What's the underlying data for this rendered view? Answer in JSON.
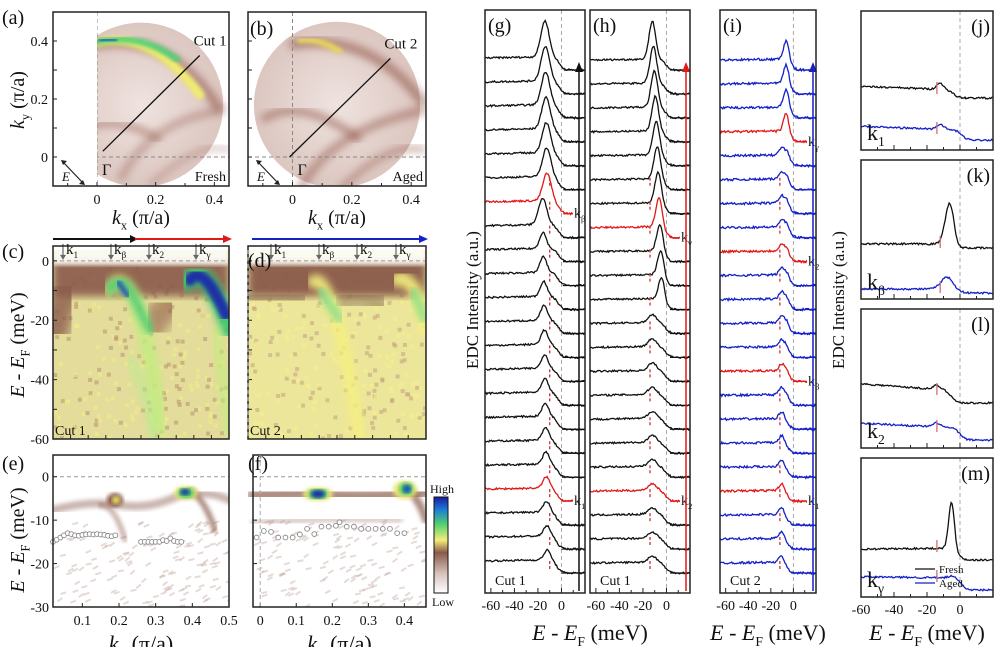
{
  "figure": {
    "panel_labels": {
      "a": "(a)",
      "b": "(b)",
      "c": "(c)",
      "d": "(d)",
      "e": "(e)",
      "f": "(f)",
      "g": "(g)",
      "h": "(h)",
      "i": "(i)",
      "j": "(j)",
      "k": "(k)",
      "l": "(l)",
      "m": "(m)"
    },
    "colors": {
      "fresh": "#111111",
      "aged": "#1420c8",
      "highlight": "#e01818",
      "marker": "#d04040",
      "axis": "#111111"
    }
  },
  "chart_data": [
    {
      "id": "a",
      "type": "heatmap",
      "title": "(a)",
      "xlabel": "k_x (π/a)",
      "ylabel": "k_y (π/a)",
      "xticks": [
        "0",
        "0.2",
        "0.4"
      ],
      "yticks": [
        "0",
        "0.2",
        "0.4"
      ],
      "xlim": [
        -0.15,
        0.45
      ],
      "ylim": [
        -0.1,
        0.5
      ],
      "annotations": [
        "Cut 1",
        "Γ",
        "E",
        "Fresh"
      ],
      "cut": {
        "from": [
          0.02,
          0.02
        ],
        "to": [
          0.35,
          0.35
        ],
        "label": "Cut 1"
      }
    },
    {
      "id": "b",
      "type": "heatmap",
      "title": "(b)",
      "xlabel": "k_x (π/a)",
      "xticks": [
        "0",
        "0.2",
        "0.4"
      ],
      "xlim": [
        -0.15,
        0.45
      ],
      "ylim": [
        -0.1,
        0.5
      ],
      "annotations": [
        "Cut 2",
        "Γ",
        "E",
        "Aged"
      ],
      "cut": {
        "from": [
          -0.01,
          0.0
        ],
        "to": [
          0.33,
          0.34
        ],
        "label": "Cut 2"
      }
    },
    {
      "id": "c",
      "type": "heatmap",
      "title": "(c)",
      "ylabel": "E - E_F (meV)",
      "yticks": [
        "0",
        "-20",
        "-40",
        "-60"
      ],
      "ylim": [
        -60,
        5
      ],
      "annotations": [
        "Cut 1"
      ],
      "markers": [
        "k₁",
        "k_β",
        "k₂",
        "k_γ"
      ]
    },
    {
      "id": "d",
      "type": "heatmap",
      "title": "(d)",
      "ylim": [
        -60,
        5
      ],
      "annotations": [
        "Cut 2"
      ],
      "markers": [
        "k₁",
        "k_β",
        "k₂",
        "k_γ"
      ]
    },
    {
      "id": "e",
      "type": "heatmap",
      "title": "(e)",
      "xlabel": "k_// (π/a)",
      "ylabel": "E - E_F (meV)",
      "xticks": [
        "0.1",
        "0.2",
        "0.3",
        "0.4",
        "0.5"
      ],
      "yticks": [
        "0",
        "-10",
        "-20",
        "-30"
      ],
      "xlim": [
        0.02,
        0.5
      ],
      "ylim": [
        -30,
        5
      ],
      "points": {
        "x": [
          0.02,
          0.03,
          0.04,
          0.05,
          0.06,
          0.07,
          0.08,
          0.09,
          0.1,
          0.11,
          0.12,
          0.13,
          0.14,
          0.15,
          0.16,
          0.17,
          0.18,
          0.19,
          0.26,
          0.27,
          0.28,
          0.29,
          0.3,
          0.31,
          0.32,
          0.33,
          0.34,
          0.35,
          0.36,
          0.37
        ],
        "y": [
          -15,
          -14.5,
          -14,
          -13.5,
          -13,
          -13.2,
          -13.5,
          -13.6,
          -13.4,
          -13.3,
          -13.2,
          -13.3,
          -13.2,
          -13.3,
          -13.4,
          -13.6,
          -13.7,
          -13.5,
          -15,
          -15,
          -15,
          -15,
          -15,
          -15,
          -14.6,
          -14.8,
          -14.2,
          -14.8,
          -15,
          -15
        ]
      }
    },
    {
      "id": "f",
      "type": "heatmap",
      "title": "(f)",
      "xlabel": "k_// (π/a)",
      "xticks": [
        "0",
        "0.1",
        "0.2",
        "0.3",
        "0.4"
      ],
      "xlim": [
        -0.02,
        0.46
      ],
      "ylim": [
        -30,
        5
      ],
      "colorbar": {
        "high": "High",
        "low": "Low"
      },
      "points": {
        "x": [
          -0.01,
          0.01,
          0.03,
          0.05,
          0.07,
          0.09,
          0.11,
          0.13,
          0.15,
          0.17,
          0.19,
          0.21,
          0.22,
          0.24,
          0.26,
          0.28,
          0.3,
          0.32,
          0.34,
          0.36,
          0.38,
          0.4
        ],
        "y": [
          -14,
          -12.5,
          -12.7,
          -14,
          -14,
          -14,
          -13.3,
          -12,
          -13.2,
          -11.5,
          -11.5,
          -11.3,
          -10.5,
          -11.5,
          -11.5,
          -12,
          -12,
          -12,
          -12,
          -12,
          -13,
          -13
        ]
      }
    },
    {
      "id": "g",
      "type": "line",
      "title": "(g)",
      "annotations": [
        "Cut 1"
      ],
      "xticks": [
        "-60",
        "-40",
        "-20",
        "0"
      ],
      "xlim": [
        -65,
        20
      ],
      "n_curves": 22,
      "highlight_labels": [
        {
          "index": 6,
          "label": "k_β"
        },
        {
          "index": 18,
          "label": "k₁"
        }
      ],
      "color": "fresh"
    },
    {
      "id": "h",
      "type": "line",
      "title": "(h)",
      "annotations": [
        "Cut 1"
      ],
      "xticks": [
        "-60",
        "-40",
        "-20",
        "0"
      ],
      "xlim": [
        -65,
        20
      ],
      "n_curves": 22,
      "highlight_labels": [
        {
          "index": 7,
          "label": "k_γ"
        },
        {
          "index": 18,
          "label": "k₂"
        }
      ],
      "color": "fresh"
    },
    {
      "id": "i",
      "type": "line",
      "title": "(i)",
      "annotations": [
        "Cut 2"
      ],
      "xticks": [
        "-60",
        "-40",
        "-20",
        "0"
      ],
      "xlim": [
        -65,
        20
      ],
      "n_curves": 22,
      "highlight_labels": [
        {
          "index": 3,
          "label": "k_γ"
        },
        {
          "index": 8,
          "label": "k₂"
        },
        {
          "index": 13,
          "label": "k_β"
        },
        {
          "index": 18,
          "label": "k₁"
        }
      ],
      "color": "aged"
    },
    {
      "id": "j",
      "type": "line",
      "title": "(j)",
      "annotations": [
        "k₁"
      ],
      "series": [
        {
          "name": "Fresh"
        },
        {
          "name": "Aged"
        }
      ]
    },
    {
      "id": "k",
      "type": "line",
      "title": "(k)",
      "annotations": [
        "k_β"
      ],
      "series": [
        {
          "name": "Fresh"
        },
        {
          "name": "Aged"
        }
      ]
    },
    {
      "id": "l",
      "type": "line",
      "title": "(l)",
      "annotations": [
        "k₂"
      ],
      "series": [
        {
          "name": "Fresh"
        },
        {
          "name": "Aged"
        }
      ]
    },
    {
      "id": "m",
      "type": "line",
      "title": "(m)",
      "annotations": [
        "k_γ"
      ],
      "xlabel": "E - E_F (meV)",
      "xticks": [
        "-60",
        "-40",
        "-20",
        "0"
      ],
      "xlim": [
        -60,
        20
      ],
      "series": [
        {
          "name": "Fresh"
        },
        {
          "name": "Aged"
        }
      ],
      "legend": [
        "Fresh",
        "Aged"
      ]
    }
  ],
  "axis_texts": {
    "ky_label": "k",
    "ky_sub": "y",
    "ky_unit": " (π/a)",
    "kx_label": "k",
    "kx_sub": "x",
    "kx_unit": " (π/a)",
    "E_label": "E",
    "E_mid": " - ",
    "E_sub": "F",
    "E_unit": " (meV)",
    "kpar_label": "k",
    "kpar_sub": "//",
    "kpar_unit": " (π/a)",
    "edc_label": "EDC Intensity (a.u.)",
    "cut1": "Cut 1",
    "cut2": "Cut 2",
    "fresh": "Fresh",
    "aged": "Aged",
    "gamma": "Γ",
    "E_arrow": "E",
    "high": "High",
    "low": "Low",
    "k1": "k",
    "k1s": "1",
    "kb": "k",
    "kbs": "β",
    "k2": "k",
    "k2s": "2",
    "kg": "k",
    "kgs": "γ"
  }
}
